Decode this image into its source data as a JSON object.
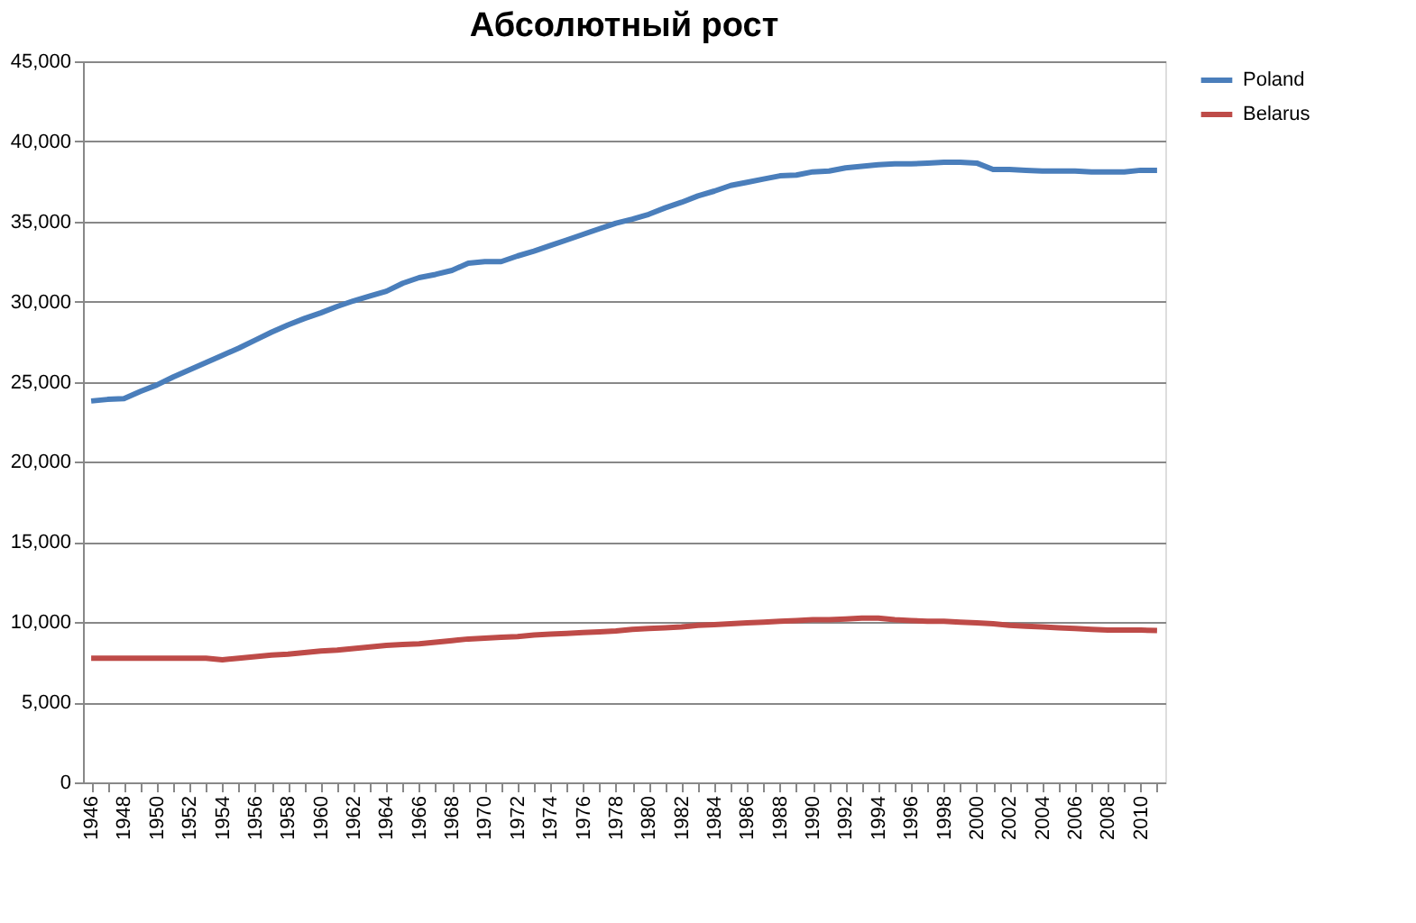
{
  "chart_data": {
    "type": "line",
    "title": "Абсолютный рост",
    "categories": [
      "1946",
      null,
      "1948",
      null,
      "1950",
      null,
      "1952",
      null,
      "1954",
      null,
      "1956",
      null,
      "1958",
      null,
      "1960",
      null,
      "1962",
      null,
      "1964",
      null,
      "1966",
      null,
      "1968",
      null,
      "1970",
      null,
      "1972",
      null,
      "1974",
      null,
      "1976",
      null,
      "1978",
      null,
      "1980",
      null,
      "1982",
      null,
      "1984",
      null,
      "1986",
      null,
      "1988",
      null,
      "1990",
      null,
      "1992",
      null,
      "1994",
      null,
      "1996",
      null,
      "1998",
      null,
      "2000",
      null,
      "2002",
      null,
      "2004",
      null,
      "2006",
      null,
      "2008",
      null,
      "2010",
      null
    ],
    "series": [
      {
        "name": "Poland",
        "color": "#4a7ebb",
        "values": [
          23800,
          23900,
          23950,
          24400,
          24800,
          25300,
          25750,
          26200,
          26650,
          27100,
          27600,
          28100,
          28550,
          28950,
          29300,
          29700,
          30050,
          30350,
          30650,
          31150,
          31500,
          31700,
          31950,
          32400,
          32500,
          32500,
          32850,
          33150,
          33500,
          33850,
          34200,
          34550,
          34900,
          35150,
          35450,
          35850,
          36200,
          36600,
          36900,
          37250,
          37450,
          37650,
          37850,
          37900,
          38100,
          38150,
          38350,
          38450,
          38550,
          38600,
          38600,
          38650,
          38700,
          38700,
          38650,
          38250,
          38250,
          38200,
          38150,
          38150,
          38150,
          38100,
          38100,
          38100,
          38200,
          38200
        ]
      },
      {
        "name": "Belarus",
        "color": "#be4b48",
        "values": [
          7750,
          7750,
          7750,
          7750,
          7750,
          7750,
          7750,
          7750,
          7650,
          7750,
          7850,
          7950,
          8000,
          8100,
          8200,
          8250,
          8350,
          8450,
          8550,
          8600,
          8650,
          8750,
          8850,
          8950,
          9000,
          9050,
          9100,
          9200,
          9250,
          9300,
          9350,
          9400,
          9450,
          9550,
          9600,
          9650,
          9700,
          9800,
          9850,
          9900,
          9950,
          10000,
          10050,
          10100,
          10150,
          10150,
          10200,
          10250,
          10250,
          10150,
          10100,
          10050,
          10050,
          10000,
          9950,
          9900,
          9800,
          9750,
          9700,
          9650,
          9600,
          9550,
          9500,
          9500,
          9500,
          9480
        ]
      }
    ],
    "ylim": [
      0,
      45000
    ],
    "yticks": [
      0,
      {
        "value": 5000,
        "label": "5,000"
      },
      {
        "value": 10000,
        "label": "10,000"
      },
      {
        "value": 15000,
        "label": "15,000"
      },
      {
        "value": 20000,
        "label": "20,000"
      },
      {
        "value": 25000,
        "label": "25,000"
      },
      {
        "value": 30000,
        "label": "30,000"
      },
      {
        "value": 35000,
        "label": "35,000"
      },
      {
        "value": 40000,
        "label": "40,000"
      },
      {
        "value": 45000,
        "label": "45,000"
      }
    ],
    "grid": "y",
    "legend": "right",
    "marker": "none",
    "line_style": "solid"
  }
}
